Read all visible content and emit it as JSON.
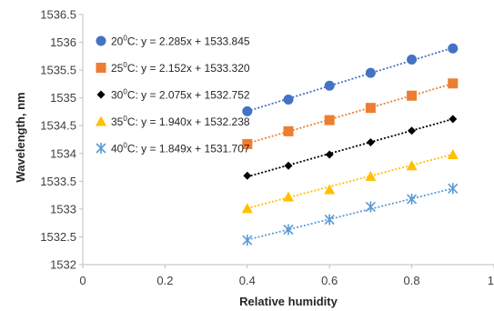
{
  "chart_data": {
    "type": "scatter",
    "xlabel": "Relative humidity",
    "ylabel": "Wavelength, nm",
    "xlim": [
      0,
      1
    ],
    "ylim": [
      1532,
      1536.5
    ],
    "x_ticks": [
      0,
      0.2,
      0.4,
      0.6,
      0.8,
      1
    ],
    "x_tick_labels": [
      "0",
      "0.2",
      "0.4",
      "0.6",
      "0.8",
      "1"
    ],
    "y_ticks": [
      1532,
      1532.5,
      1533,
      1533.5,
      1534,
      1534.5,
      1535,
      1535.5,
      1536,
      1536.5
    ],
    "y_tick_labels": [
      "1532",
      "1532.5",
      "1533",
      "1533.5",
      "1534",
      "1534.5",
      "1535",
      "1535.5",
      "1536",
      "1536.5"
    ],
    "grid": false,
    "legend_position": "top-left",
    "x": [
      0.4,
      0.5,
      0.6,
      0.7,
      0.8,
      0.9
    ],
    "series": [
      {
        "name": "20°C: y = 2.285x + 1533.845",
        "temp_base": "20",
        "temp_sup": "0",
        "equation": "C: y = 2.285x + 1533.845",
        "values": [
          1534.76,
          1534.97,
          1535.22,
          1535.45,
          1535.69,
          1535.89
        ],
        "trend": {
          "slope": 2.285,
          "intercept": 1533.845
        },
        "color": "#4472C4",
        "marker": "circle"
      },
      {
        "name": "25°C: y = 2.152x + 1533.320",
        "temp_base": "25",
        "temp_sup": "0",
        "equation": "C: y = 2.152x + 1533.320",
        "values": [
          1534.17,
          1534.4,
          1534.6,
          1534.82,
          1535.04,
          1535.26
        ],
        "trend": {
          "slope": 2.152,
          "intercept": 1533.32
        },
        "color": "#ED7D31",
        "marker": "square"
      },
      {
        "name": "30°C: y = 2.075x + 1532.752",
        "temp_base": "30",
        "temp_sup": "0",
        "equation": "C: y = 2.075x + 1532.752",
        "values": [
          1533.6,
          1533.78,
          1533.98,
          1534.2,
          1534.41,
          1534.62
        ],
        "trend": {
          "slope": 2.075,
          "intercept": 1532.752
        },
        "color": "#000000",
        "marker": "diamond"
      },
      {
        "name": "35°C: y = 1.940x + 1532.238",
        "temp_base": "35",
        "temp_sup": "0",
        "equation": "C: y = 1.940x + 1532.238",
        "values": [
          1533.01,
          1533.22,
          1533.35,
          1533.59,
          1533.78,
          1533.98
        ],
        "trend": {
          "slope": 1.94,
          "intercept": 1532.238
        },
        "color": "#FFC000",
        "marker": "triangle"
      },
      {
        "name": "40°C: y = 1.849x + 1531.707",
        "temp_base": "40",
        "temp_sup": "0",
        "equation": "C: y = 1.849x + 1531.707",
        "values": [
          1532.44,
          1532.63,
          1532.81,
          1533.04,
          1533.18,
          1533.37
        ],
        "trend": {
          "slope": 1.849,
          "intercept": 1531.707
        },
        "color": "#5B9BD5",
        "marker": "asterisk"
      }
    ]
  }
}
